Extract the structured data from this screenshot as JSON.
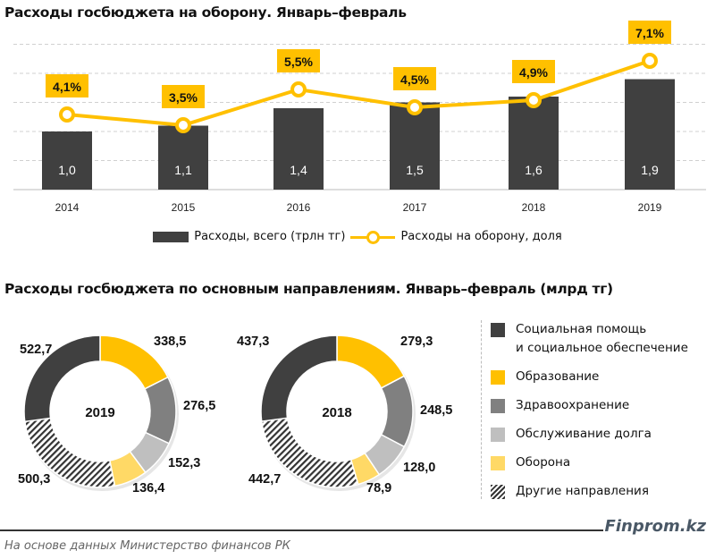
{
  "chart_data": [
    {
      "type": "bar+line",
      "title": "Расходы госбюджета на оборону. Январь–февраль",
      "categories": [
        "2014",
        "2015",
        "2016",
        "2017",
        "2018",
        "2019"
      ],
      "series": [
        {
          "name": "Расходы, всего (трлн тг)",
          "type": "bar",
          "values": [
            1.0,
            1.1,
            1.4,
            1.5,
            1.6,
            1.9
          ],
          "labels": [
            "1,0",
            "1,1",
            "1,4",
            "1,5",
            "1,6",
            "1,9"
          ],
          "color": "#404040"
        },
        {
          "name": "Расходы на оборону, доля",
          "type": "line",
          "values": [
            4.1,
            3.5,
            5.5,
            4.5,
            4.9,
            7.1
          ],
          "labels": [
            "4,1%",
            "3,5%",
            "5,5%",
            "4,5%",
            "4,9%",
            "7,1%"
          ],
          "color": "#FFC000"
        }
      ],
      "ylim": [
        0,
        2.5
      ],
      "grid": true,
      "legend": "bottom"
    },
    {
      "type": "donut",
      "title": "Расходы госбюджета по основным направлениям. Январь–февраль (млрд тг)",
      "categories": [
        "Социальная помощь и социальное обеспечение",
        "Образование",
        "Здравоохранение",
        "Обслуживание долга",
        "Оборона",
        "Другие направления"
      ],
      "colors": [
        "#404040",
        "#FFC000",
        "#808080",
        "#BFBFBF",
        "#FFD966",
        "hatch"
      ],
      "donuts": [
        {
          "name": "2019",
          "values": [
            522.7,
            338.5,
            276.5,
            152.3,
            136.4,
            500.3
          ],
          "labels": [
            "522,7",
            "338,5",
            "276,5",
            "152,3",
            "136,4",
            "500,3"
          ]
        },
        {
          "name": "2018",
          "values": [
            437.3,
            279.3,
            248.5,
            128.0,
            78.9,
            442.7
          ],
          "labels": [
            "437,3",
            "279,3",
            "248,5",
            "128,0",
            "78,9",
            "442,7"
          ]
        }
      ],
      "legend": "right",
      "legend_lines": [
        [
          "Социальная помощь",
          "и социальное обеспечение"
        ],
        [
          "Образование"
        ],
        [
          "Здравоохранение"
        ],
        [
          "Обслуживание долга"
        ],
        [
          "Оборона"
        ],
        [
          "Другие направления"
        ]
      ]
    }
  ],
  "footer": {
    "brand": "Finprom.kz",
    "source": "На основе данных Министерство финансов РК"
  }
}
